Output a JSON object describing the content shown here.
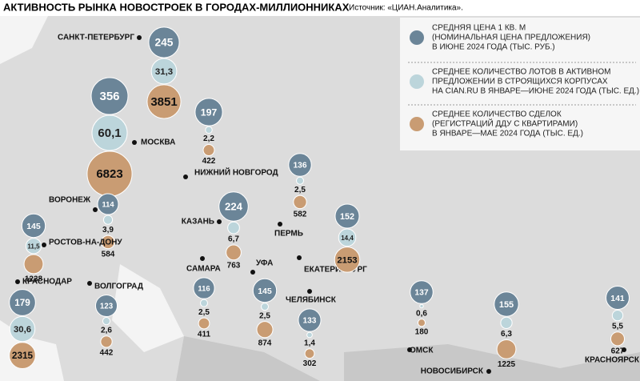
{
  "title": "АКТИВНОСТЬ РЫНКА НОВОСТРОЕК В ГОРОДАХ-МИЛЛИОННИКАХ",
  "source": "Источник: «ЦИАН.Аналитика».",
  "colors": {
    "price": "#6b8598",
    "lots": "#bcd5db",
    "deals": "#c99c73"
  },
  "legend": [
    {
      "lines": [
        "СРЕДНЯЯ ЦЕНА 1 КВ. М",
        "(НОМИНАЛЬНАЯ ЦЕНА ПРЕДЛОЖЕНИЯ)",
        "В ИЮНЕ 2024 ГОДА (ТЫС. РУБ.)"
      ]
    },
    {
      "lines": [
        "СРЕДНЕЕ КОЛИЧЕСТВО ЛОТОВ В АКТИВНОМ",
        "ПРЕДЛОЖЕНИИ В СТРОЯЩИХСЯ КОРПУСАХ",
        "НА CIAN.RU В ЯНВАРЕ—ИЮНЕ 2024 ГОДА (ТЫС. ЕД.)"
      ]
    },
    {
      "lines": [
        "СРЕДНЕЕ КОЛИЧЕСТВО СДЕЛОК",
        "(РЕГИСТРАЦИЙ ДДУ С КВАРТИРАМИ)",
        "В ЯНВАРЕ—МАЕ 2024 ГОДА (ТЫС. ЕД.)"
      ]
    }
  ],
  "cities": [
    {
      "name": "САНКТ-ПЕТЕРБУРГ",
      "price": 245,
      "lots": 31.3,
      "lots_label": "31,3",
      "deals": 3851
    },
    {
      "name": "МОСКВА",
      "price": 356,
      "lots": 60.1,
      "lots_label": "60,1",
      "deals": 6823
    },
    {
      "name": "НИЖНИЙ НОВГОРОД",
      "price": 197,
      "lots": 2.2,
      "lots_label": "2,2",
      "deals": 422
    },
    {
      "name": "ПЕРМЬ",
      "price": 136,
      "lots": 2.5,
      "lots_label": "2,5",
      "deals": 582
    },
    {
      "name": "ВОРОНЕЖ",
      "price": 114,
      "lots": 3.9,
      "lots_label": "3,9",
      "deals": 584
    },
    {
      "name": "КАЗАНЬ",
      "price": 224,
      "lots": 6.7,
      "lots_label": "6,7",
      "deals": 763
    },
    {
      "name": "ЕКАТЕРИНБУРГ",
      "price": 152,
      "lots": 14.4,
      "lots_label": "14,4",
      "deals": 2153
    },
    {
      "name": "РОСТОВ-НА-ДОНУ",
      "price": 145,
      "lots": 11.5,
      "lots_label": "11,5",
      "deals": 1238
    },
    {
      "name": "КРАСНОДАР",
      "price": 179,
      "lots": 30.6,
      "lots_label": "30,6",
      "deals": 2315
    },
    {
      "name": "ВОЛГОГРАД",
      "price": 123,
      "lots": 2.6,
      "lots_label": "2,6",
      "deals": 442
    },
    {
      "name": "САМАРА",
      "price": 116,
      "lots": 2.5,
      "lots_label": "2,5",
      "deals": 411
    },
    {
      "name": "УФА",
      "price": 145,
      "lots": 2.5,
      "lots_label": "2,5",
      "deals": 874
    },
    {
      "name": "ЧЕЛЯБИНСК",
      "price": 133,
      "lots": 1.4,
      "lots_label": "1,4",
      "deals": 302
    },
    {
      "name": "ОМСК",
      "price": 137,
      "lots": 0.6,
      "lots_label": "0,6",
      "deals": 180
    },
    {
      "name": "НОВОСИБИРСК",
      "price": 155,
      "lots": 6.3,
      "lots_label": "6,3",
      "deals": 1225
    },
    {
      "name": "КРАСНОЯРСК",
      "price": 141,
      "lots": 5.5,
      "lots_label": "5,5",
      "deals": 627
    }
  ]
}
